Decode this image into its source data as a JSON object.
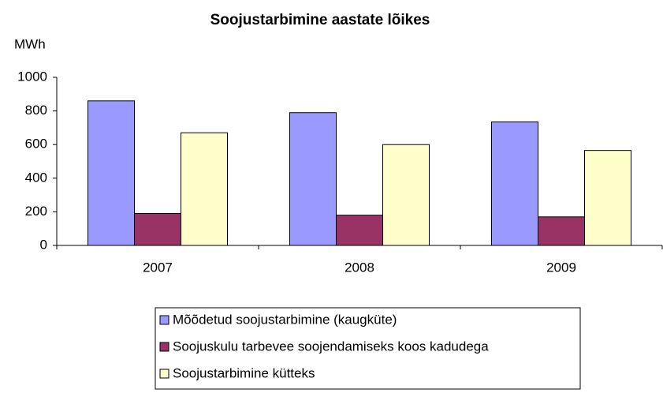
{
  "chart_data": {
    "type": "bar",
    "title": "Soojustarbimine aastate lõikes",
    "y_label": "MWh",
    "categories": [
      "2007",
      "2008",
      "2009"
    ],
    "series": [
      {
        "name": "Mõõdetud soojustarbimine (kaugküte)",
        "color": "#9999ff",
        "values": [
          860,
          790,
          735
        ]
      },
      {
        "name": "Soojuskulu tarbevee soojendamiseks koos kadudega",
        "color": "#993366",
        "values": [
          190,
          180,
          170
        ]
      },
      {
        "name": "Soojustarbimine kütteks",
        "color": "#ffffcc",
        "values": [
          670,
          600,
          565
        ]
      }
    ],
    "ylim": [
      0,
      1000
    ],
    "yticks": [
      0,
      200,
      400,
      600,
      800,
      1000
    ],
    "grid": false
  }
}
